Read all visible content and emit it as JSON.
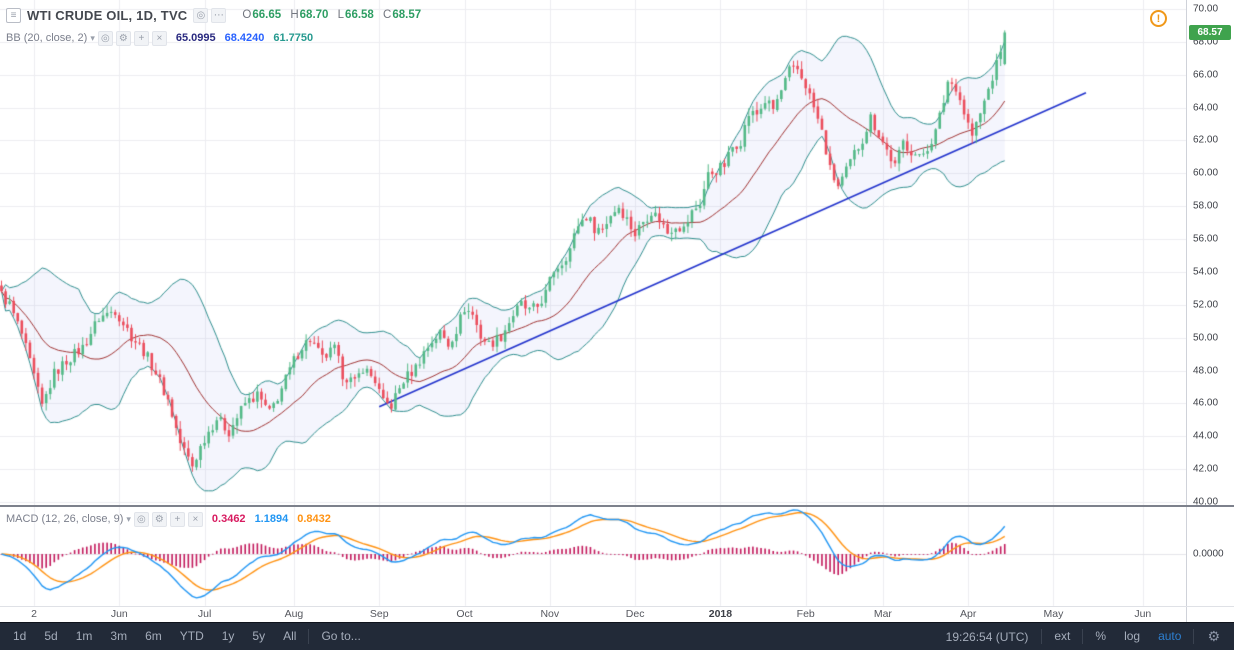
{
  "header": {
    "symbol": "WTI CRUDE OIL, 1D, TVC",
    "ohlc": {
      "o_label": "O",
      "o": "66.65",
      "h_label": "H",
      "h": "68.70",
      "l_label": "L",
      "l": "66.58",
      "c_label": "C",
      "c": "68.57",
      "value_color": "#2e9e63"
    },
    "bb": {
      "label": "BB (20, close, 2)",
      "values": [
        "65.0995",
        "68.4240",
        "61.7750"
      ],
      "value_colors": [
        "#2a2a80",
        "#2962ff",
        "#269a8f"
      ]
    }
  },
  "macd_header": {
    "label": "MACD (12, 26, close, 9)",
    "values": [
      "0.3462",
      "1.1894",
      "0.8432"
    ],
    "value_colors": [
      "#d81b60",
      "#2196f3",
      "#ff9212"
    ]
  },
  "icons": {
    "collapse": "≡",
    "dropdown": "▾",
    "eye": "◎",
    "gear": "⚙",
    "plus": "+",
    "close": "×",
    "more": "⋯",
    "alert": "!"
  },
  "alert_color": "#f09819",
  "toolbar": {
    "ranges": [
      "1d",
      "5d",
      "1m",
      "3m",
      "6m",
      "YTD",
      "1y",
      "5y",
      "All"
    ],
    "goto": "Go to...",
    "clock": "19:26:54 (UTC)",
    "ext": "ext",
    "percent": "%",
    "log": "log",
    "auto": "auto",
    "auto_color": "#2d7fd0",
    "bg": "#222a38"
  },
  "chart_data": {
    "type": "candlestick",
    "title": "WTI CRUDE OIL, 1D, TVC",
    "legend": [
      "BB (20, close, 2)",
      "MACD (12, 26, close, 9)"
    ],
    "ylim": [
      40,
      70
    ],
    "y_ticks": [
      "70.00",
      "68.00",
      "66.00",
      "64.00",
      "62.00",
      "60.00",
      "58.00",
      "56.00",
      "54.00",
      "52.00",
      "50.00",
      "48.00",
      "46.00",
      "44.00",
      "42.00",
      "40.00"
    ],
    "macd_zero_label": "0.0000",
    "x_axis_days": 292,
    "candles": 248,
    "x_labels": [
      {
        "t": "2",
        "d": 8
      },
      {
        "t": "Jun",
        "d": 29
      },
      {
        "t": "Jul",
        "d": 50
      },
      {
        "t": "Aug",
        "d": 72
      },
      {
        "t": "Sep",
        "d": 93
      },
      {
        "t": "Oct",
        "d": 114
      },
      {
        "t": "Nov",
        "d": 135
      },
      {
        "t": "Dec",
        "d": 156
      },
      {
        "t": "2018",
        "d": 177
      },
      {
        "t": "Feb",
        "d": 198
      },
      {
        "t": "Mar",
        "d": 217
      },
      {
        "t": "Apr",
        "d": 238
      },
      {
        "t": "May",
        "d": 259
      },
      {
        "t": "Jun",
        "d": 281
      }
    ],
    "price_anchors": [
      [
        0,
        52.6
      ],
      [
        2,
        52.0
      ],
      [
        5,
        50.2
      ],
      [
        8,
        47.6
      ],
      [
        10,
        45.8
      ],
      [
        13,
        47.8
      ],
      [
        16,
        48.6
      ],
      [
        20,
        49.4
      ],
      [
        24,
        51.2
      ],
      [
        28,
        51.7
      ],
      [
        32,
        50.1
      ],
      [
        35,
        49.2
      ],
      [
        38,
        47.9
      ],
      [
        41,
        46.2
      ],
      [
        44,
        43.6
      ],
      [
        47,
        42.2
      ],
      [
        50,
        43.9
      ],
      [
        53,
        45.1
      ],
      [
        56,
        44.3
      ],
      [
        60,
        46.0
      ],
      [
        63,
        46.5
      ],
      [
        66,
        45.4
      ],
      [
        69,
        46.9
      ],
      [
        72,
        48.6
      ],
      [
        74,
        49.5
      ],
      [
        76,
        49.9
      ],
      [
        79,
        48.7
      ],
      [
        82,
        49.3
      ],
      [
        84,
        47.8
      ],
      [
        87,
        47.2
      ],
      [
        89,
        48.2
      ],
      [
        92,
        47.4
      ],
      [
        94,
        46.0
      ],
      [
        96,
        45.9
      ],
      [
        99,
        47.4
      ],
      [
        102,
        48.2
      ],
      [
        104,
        49.1
      ],
      [
        106,
        49.8
      ],
      [
        108,
        50.3
      ],
      [
        110,
        49.6
      ],
      [
        112,
        50.5
      ],
      [
        114,
        51.8
      ],
      [
        116,
        51.4
      ],
      [
        118,
        50.1
      ],
      [
        120,
        49.6
      ],
      [
        123,
        50.1
      ],
      [
        126,
        51.4
      ],
      [
        128,
        52.0
      ],
      [
        130,
        51.6
      ],
      [
        132,
        51.9
      ],
      [
        134,
        52.7
      ],
      [
        136,
        54.1
      ],
      [
        138,
        54.6
      ],
      [
        140,
        55.4
      ],
      [
        142,
        56.9
      ],
      [
        144,
        57.4
      ],
      [
        146,
        56.7
      ],
      [
        148,
        56.6
      ],
      [
        150,
        57.5
      ],
      [
        152,
        58.0
      ],
      [
        154,
        57.2
      ],
      [
        156,
        56.3
      ],
      [
        158,
        57.1
      ],
      [
        160,
        57.7
      ],
      [
        162,
        57.2
      ],
      [
        164,
        56.4
      ],
      [
        166,
        56.9
      ],
      [
        168,
        56.6
      ],
      [
        170,
        57.6
      ],
      [
        172,
        58.2
      ],
      [
        174,
        59.9
      ],
      [
        176,
        60.2
      ],
      [
        178,
        60.5
      ],
      [
        180,
        61.6
      ],
      [
        182,
        62.0
      ],
      [
        184,
        63.6
      ],
      [
        186,
        63.6
      ],
      [
        188,
        64.4
      ],
      [
        190,
        63.9
      ],
      [
        192,
        65.0
      ],
      [
        194,
        66.2
      ],
      [
        196,
        66.3
      ],
      [
        198,
        65.4
      ],
      [
        200,
        64.0
      ],
      [
        202,
        62.5
      ],
      [
        204,
        60.2
      ],
      [
        206,
        59.2
      ],
      [
        208,
        60.1
      ],
      [
        210,
        61.2
      ],
      [
        212,
        62.1
      ],
      [
        214,
        63.4
      ],
      [
        216,
        62.4
      ],
      [
        218,
        61.4
      ],
      [
        220,
        60.4
      ],
      [
        222,
        61.9
      ],
      [
        224,
        61.4
      ],
      [
        226,
        60.9
      ],
      [
        228,
        61.6
      ],
      [
        230,
        62.5
      ],
      [
        232,
        64.4
      ],
      [
        233,
        65.6
      ],
      [
        235,
        65.3
      ],
      [
        237,
        63.7
      ],
      [
        239,
        62.3
      ],
      [
        241,
        63.6
      ],
      [
        243,
        65.1
      ],
      [
        245,
        66.6
      ],
      [
        247,
        68.57
      ]
    ],
    "last_candle": {
      "o": 66.65,
      "h": 68.7,
      "l": 66.58,
      "c": 68.57
    },
    "last_price_label": "68.57",
    "trendline": {
      "d1": 93,
      "p1": 45.8,
      "d2": 267,
      "p2": 64.9
    },
    "indicators": {
      "bb": {
        "length": 20,
        "mult": 2
      },
      "macd": {
        "fast": 12,
        "slow": 26,
        "signal": 9
      }
    },
    "noise": 0.35,
    "colors": {
      "up": "#53b987",
      "down": "#eb4d5c",
      "bb_band": "#2f8e8e",
      "bb_basis": "#a03333",
      "bb_fill": "rgba(100,115,220,0.07)",
      "grid": "#ededf0",
      "zero_grid": "#e4e4ea",
      "trend": "#2233cc",
      "macd": "#2196f3",
      "signal": "#ff9212",
      "hist": "#c2185b",
      "tag_bg": "#3fa34d",
      "tag_text": "#ffffff"
    }
  }
}
